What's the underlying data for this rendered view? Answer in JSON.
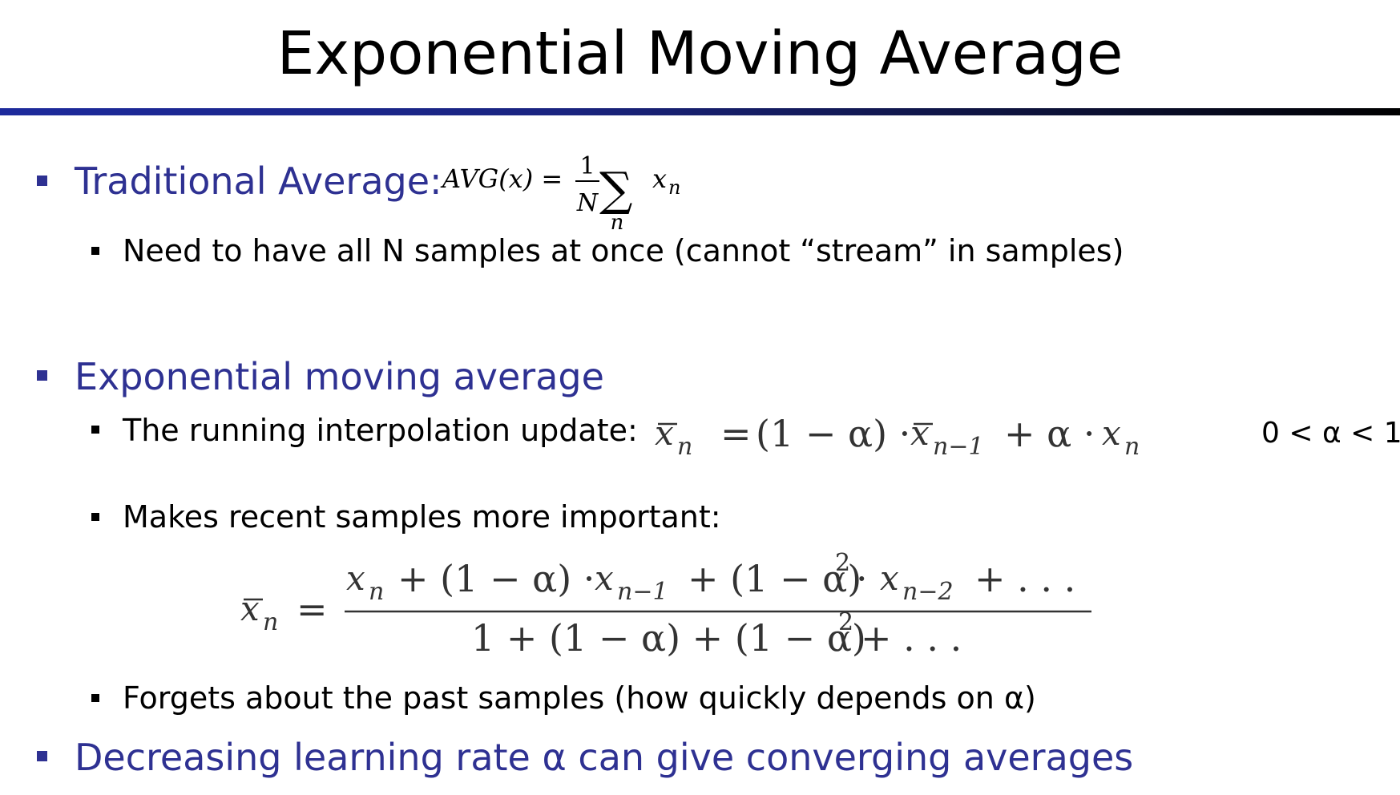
{
  "slide": {
    "title": "Exponential Moving Average",
    "colors": {
      "heading": "#2e3192",
      "rule": "#1d2a9c"
    }
  },
  "sections": [
    {
      "heading": "Traditional Average:",
      "formula": {
        "lhs": "AVG(x) =",
        "frac_num": "1",
        "frac_den": "N",
        "sum_symbol": "∑",
        "sum_sub": "n",
        "term_base": "x",
        "term_sub": "n"
      },
      "bullets": [
        "Need to have all N samples at once (cannot “stream” in samples)"
      ]
    },
    {
      "heading": "Exponential moving average",
      "bullets": [
        "The running interpolation update:",
        "Makes recent samples more important:",
        "Forgets about the past samples (how quickly depends on α)"
      ],
      "update_formula": {
        "xbar": "x",
        "sub_n": "n",
        "eq": "=",
        "part1": "(1 − α) ·",
        "sub_n1": "n−1",
        "part2": "+ α ·",
        "range": "0 < α < 1"
      },
      "weighted_formula": {
        "num_a": "+ (1 − α) ·",
        "num_b": "+ (1 − α)",
        "num_sq": "2",
        "num_c": "·",
        "num_sub2": "n−2",
        "num_tail": "+ . . .",
        "den_a": "1 + (1 − α) + (1 − α)",
        "den_sq": "2",
        "den_tail": "+ . . ."
      }
    },
    {
      "heading": "Decreasing learning rate α can give converging averages",
      "bullets": []
    }
  ]
}
